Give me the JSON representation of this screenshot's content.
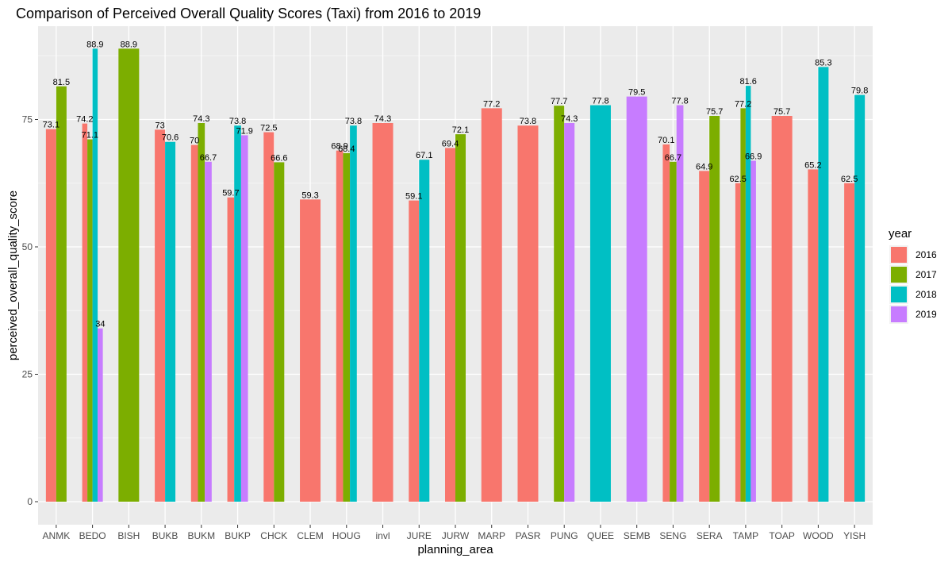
{
  "chart_data": {
    "type": "bar",
    "title": "Comparison of Perceived Overall Quality Scores (Taxi) from 2016 to 2019",
    "xlabel": "planning_area",
    "ylabel": "perceived_overall_quality_score",
    "ylim": [
      0,
      93
    ],
    "yticks": [
      0,
      25,
      50,
      75
    ],
    "grid": true,
    "legend": {
      "title": "year",
      "position": "right"
    },
    "categories": [
      "ANMK",
      "BEDO",
      "BISH",
      "BUKB",
      "BUKM",
      "BUKP",
      "CHCK",
      "CLEM",
      "HOUG",
      "invl",
      "JURE",
      "JURW",
      "MARP",
      "PASR",
      "PUNG",
      "QUEE",
      "SEMB",
      "SENG",
      "SERA",
      "TAMP",
      "TOAP",
      "WOOD",
      "YISH"
    ],
    "series": [
      {
        "name": "2016",
        "color": "#F8766D",
        "values": [
          73.1,
          74.2,
          null,
          73,
          70,
          59.7,
          72.5,
          59.3,
          68.9,
          74.3,
          59.1,
          69.4,
          77.2,
          73.8,
          null,
          null,
          null,
          70.1,
          64.9,
          62.5,
          75.7,
          65.2,
          62.5
        ]
      },
      {
        "name": "2017",
        "color": "#7CAE00",
        "values": [
          81.5,
          71.1,
          88.9,
          null,
          74.3,
          null,
          66.6,
          null,
          68.4,
          null,
          null,
          72.1,
          null,
          null,
          77.7,
          null,
          null,
          66.7,
          75.7,
          77.2,
          null,
          null,
          null
        ]
      },
      {
        "name": "2018",
        "color": "#00BFC4",
        "values": [
          null,
          88.9,
          null,
          70.6,
          null,
          73.8,
          null,
          null,
          73.8,
          null,
          67.1,
          null,
          null,
          null,
          null,
          77.8,
          null,
          null,
          null,
          81.6,
          null,
          85.3,
          79.8
        ]
      },
      {
        "name": "2019",
        "color": "#C77CFF",
        "values": [
          null,
          34,
          null,
          null,
          66.7,
          71.9,
          null,
          null,
          null,
          null,
          null,
          null,
          null,
          null,
          74.3,
          null,
          79.5,
          77.8,
          null,
          66.9,
          null,
          null,
          null
        ]
      }
    ]
  }
}
